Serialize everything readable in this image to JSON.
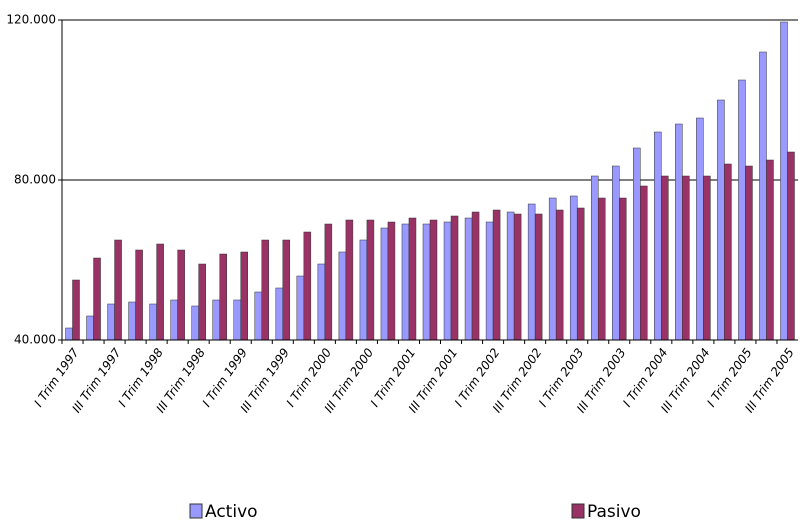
{
  "chart_data": {
    "type": "bar",
    "categories": [
      "I Trim 1997",
      null,
      "III Trim 1997",
      null,
      "I Trim 1998",
      null,
      "III Trim 1998",
      null,
      "I Trim 1999",
      null,
      "III Trim 1999",
      null,
      "I Trim 2000",
      null,
      "III Trim 2000",
      null,
      "I Trim 2001",
      null,
      "III Trim 2001",
      null,
      "I Trim 2002",
      null,
      "III Trim 2002",
      null,
      "I Trim 2003",
      null,
      "III Trim 2003",
      null,
      "I Trim 2004",
      null,
      "III Trim 2004",
      null,
      "I Trim 2005",
      null,
      "III Trim 2005"
    ],
    "series": [
      {
        "name": "Activo",
        "color": "#9999ff",
        "values": [
          43000,
          46000,
          49000,
          49500,
          49000,
          50000,
          48500,
          50000,
          50000,
          52000,
          53000,
          56000,
          59000,
          62000,
          65000,
          68000,
          69000,
          69000,
          69500,
          70500,
          69500,
          72000,
          74000,
          75500,
          76000,
          81000,
          83500,
          88000,
          92000,
          94000,
          95500,
          100000,
          105000,
          112000,
          119500
        ]
      },
      {
        "name": "Pasivo",
        "color": "#993366",
        "values": [
          55000,
          60500,
          65000,
          62500,
          64000,
          62500,
          59000,
          61500,
          62000,
          65000,
          65000,
          67000,
          69000,
          70000,
          70000,
          69500,
          70500,
          70000,
          71000,
          72000,
          72500,
          71500,
          71500,
          72500,
          73000,
          75500,
          75500,
          78500,
          81000,
          81000,
          81000,
          84000,
          83500,
          85000,
          87000
        ]
      }
    ],
    "ylim": [
      40000,
      120000
    ],
    "yticks": [
      {
        "value": 40000,
        "label": "40.000"
      },
      {
        "value": 80000,
        "label": "80.000"
      },
      {
        "value": 120000,
        "label": "120.000"
      }
    ],
    "grid": true,
    "legend": "bottom"
  }
}
